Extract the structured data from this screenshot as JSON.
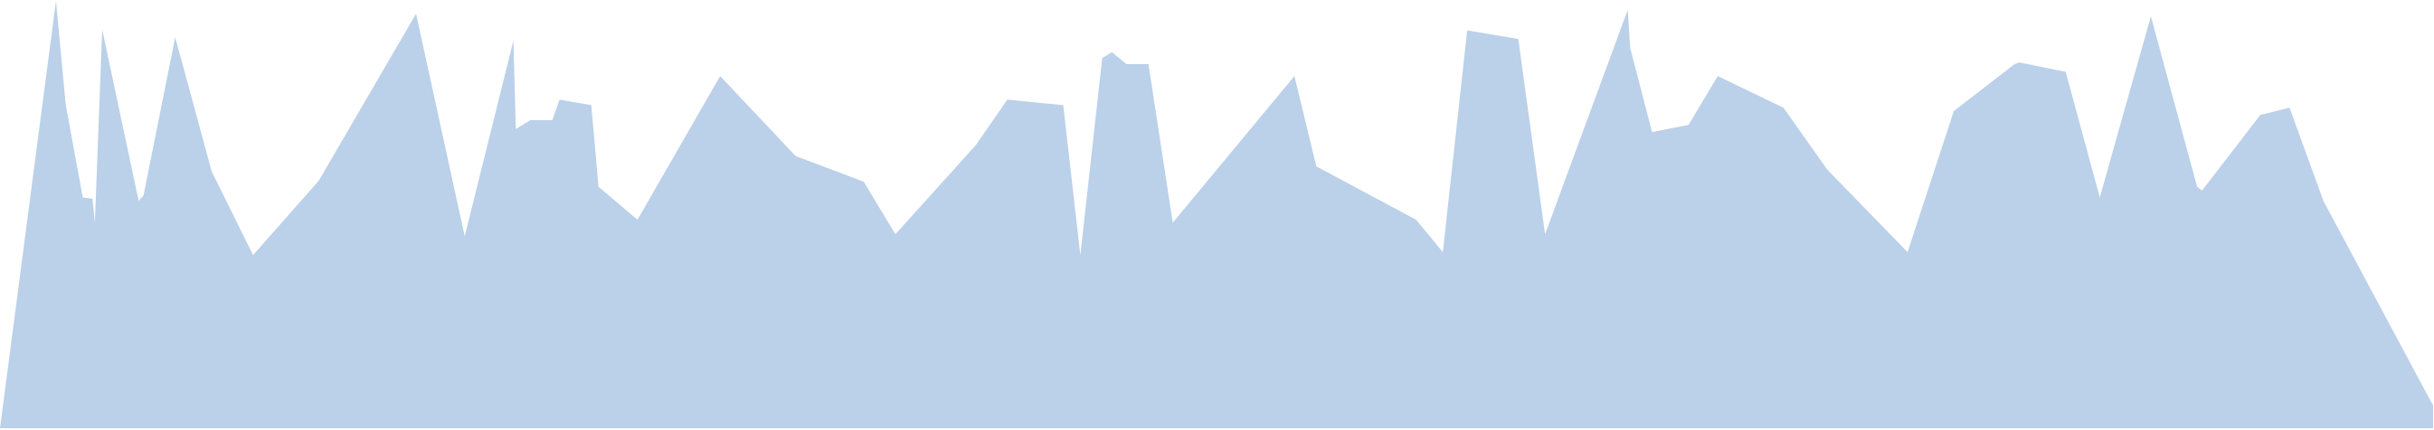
{
  "chart_data": {
    "type": "area",
    "title": "",
    "xlabel": "",
    "ylabel": "",
    "grid": false,
    "legend": "none",
    "fill_color": "#bbd0e9",
    "xlim": [
      0,
      100
    ],
    "ylim": [
      0,
      100
    ],
    "series": [
      {
        "x": [
          0.0,
          2.3,
          2.7,
          3.4,
          3.8,
          3.9,
          4.2,
          5.7,
          5.9,
          7.2,
          8.7,
          10.4,
          13.1,
          17.1,
          19.1,
          21.1,
          21.2,
          21.8,
          22.7,
          23.0,
          24.3,
          24.6,
          26.2,
          29.6,
          32.7,
          35.5,
          36.8,
          40.1,
          41.4,
          43.7,
          44.4,
          45.3,
          45.7,
          46.3,
          47.2,
          48.2,
          53.2,
          54.1,
          58.2,
          59.3,
          60.3,
          62.4,
          63.5,
          66.9,
          67.0,
          67.9,
          69.4,
          70.6,
          73.3,
          75.1,
          78.4,
          80.3,
          82.8,
          83.0,
          84.9,
          86.3,
          88.4,
          90.3,
          90.5,
          92.9,
          94.1,
          95.5,
          100.0
        ],
        "y": [
          0.0,
          100.0,
          75.8,
          54.0,
          53.7,
          48.1,
          93.3,
          53.2,
          54.5,
          91.5,
          60.1,
          40.5,
          57.9,
          97.0,
          44.9,
          90.7,
          70.0,
          72.1,
          72.1,
          76.9,
          75.6,
          56.5,
          48.8,
          82.4,
          63.7,
          57.7,
          45.4,
          66.2,
          76.9,
          75.6,
          40.5,
          86.6,
          88.0,
          85.2,
          85.2,
          48.1,
          82.4,
          61.3,
          48.8,
          41.2,
          93.1,
          91.1,
          45.4,
          97.9,
          89.0,
          69.3,
          71.0,
          82.4,
          75.0,
          60.5,
          41.2,
          74.2,
          85.2,
          85.6,
          83.4,
          54.0,
          96.4,
          56.5,
          55.6,
          73.3,
          75.0,
          53.1,
          5.3
        ]
      }
    ]
  }
}
